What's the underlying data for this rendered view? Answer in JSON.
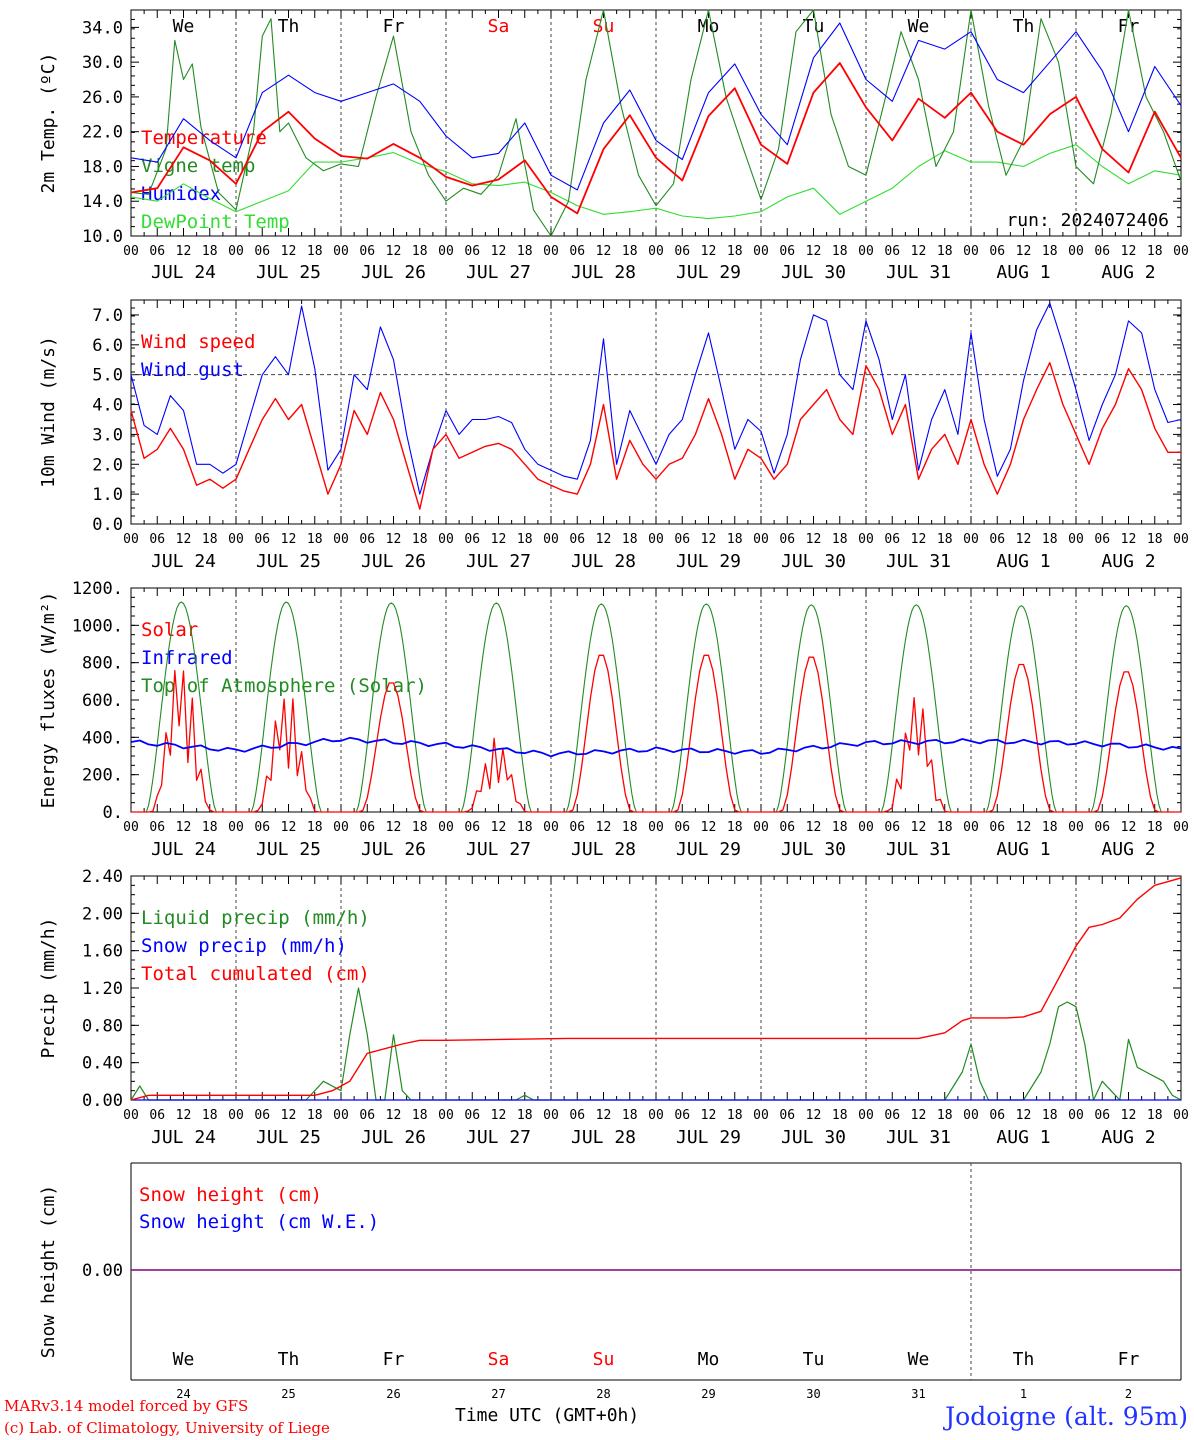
{
  "colors": {
    "red": "#ff0000",
    "green": "#228b22",
    "blue": "#0000ff",
    "lightgreen": "#33dd33",
    "purple": "#800080",
    "grid": "#444444"
  },
  "footer": {
    "model": "MARv3.14 model forced by GFS",
    "lab": "(c) Lab. of Climatology, University of Liege",
    "xaxis": "Time UTC (GMT+0h)",
    "station": "Jodoigne (alt. 95m)"
  },
  "days": {
    "names": [
      "We",
      "Th",
      "Fr",
      "Sa",
      "Su",
      "Mo",
      "Tu",
      "We",
      "Th",
      "Fr"
    ],
    "weekend": [
      false,
      false,
      false,
      true,
      true,
      false,
      false,
      false,
      false,
      false
    ],
    "dates": [
      "JUL 24",
      "JUL 25",
      "JUL 26",
      "JUL 27",
      "JUL 28",
      "JUL 29",
      "JUL 30",
      "JUL 31",
      "AUG  1",
      "AUG  2"
    ],
    "day_numbers": [
      "24",
      "25",
      "26",
      "27",
      "28",
      "29",
      "30",
      "31",
      "1",
      "2"
    ],
    "hour_ticks": [
      "00",
      "06",
      "12",
      "18"
    ],
    "end_tick": "00"
  },
  "chart_data": [
    {
      "type": "line",
      "ylabel": "2m Temp. (ºC)",
      "ylim": [
        10.0,
        36.0
      ],
      "yticks": [
        "10.0",
        "14.0",
        "18.0",
        "22.0",
        "26.0",
        "30.0",
        "34.0"
      ],
      "x_unit": "hours from JUL 24 00 UTC",
      "annotation": "run: 2024072406",
      "series": [
        {
          "name": "Temperature",
          "color": "red",
          "x": [
            0,
            6,
            12,
            18,
            24,
            30,
            36,
            42,
            48,
            54,
            60,
            66,
            72,
            78,
            84,
            90,
            96,
            102,
            108,
            114,
            120,
            126,
            132,
            138,
            144,
            150,
            156,
            162,
            168,
            174,
            180,
            186,
            192,
            198,
            204,
            210,
            216,
            222,
            228,
            234,
            240
          ],
          "values": [
            15.0,
            15.5,
            20.2,
            18.7,
            16.0,
            22.0,
            24.3,
            21.2,
            19.2,
            18.9,
            20.6,
            19.0,
            16.8,
            15.8,
            16.5,
            18.7,
            14.5,
            12.6,
            20.0,
            23.9,
            19.0,
            16.4,
            23.8,
            27.0,
            20.5,
            18.3,
            26.5,
            29.9,
            24.8,
            21.0,
            25.8,
            23.6,
            26.5,
            22.0,
            20.5,
            24.0,
            26.0,
            20.0,
            17.3,
            24.3,
            19.0
          ]
        },
        {
          "name": "Vigne temp",
          "color": "green",
          "x": [
            0,
            4,
            8,
            10,
            12,
            14,
            16,
            20,
            24,
            28,
            30,
            32,
            34,
            36,
            40,
            44,
            48,
            52,
            56,
            60,
            64,
            68,
            72,
            76,
            80,
            84,
            88,
            92,
            96,
            100,
            104,
            108,
            112,
            116,
            120,
            124,
            128,
            132,
            136,
            140,
            144,
            148,
            152,
            156,
            160,
            164,
            168,
            172,
            176,
            180,
            184,
            188,
            192,
            196,
            200,
            204,
            208,
            212,
            216,
            220,
            224,
            228,
            232,
            236,
            240
          ],
          "values": [
            15.0,
            14.8,
            20.0,
            32.5,
            28.0,
            29.8,
            22.5,
            15.0,
            13.0,
            22.0,
            33.0,
            35.0,
            22.0,
            23.0,
            19.0,
            17.5,
            18.3,
            18.0,
            26.0,
            33.0,
            22.0,
            17.0,
            14.0,
            15.5,
            14.8,
            17.0,
            23.5,
            13.0,
            10.0,
            14.0,
            28.0,
            36.0,
            25.0,
            17.0,
            13.5,
            16.0,
            28.0,
            36.0,
            26.0,
            20.0,
            14.2,
            20.0,
            33.5,
            37.0,
            24.0,
            18.0,
            17.0,
            25.0,
            33.5,
            28.0,
            18.0,
            22.0,
            37.0,
            25.0,
            17.0,
            21.0,
            35.0,
            30.0,
            18.0,
            16.0,
            24.0,
            37.0,
            26.0,
            22.0,
            16.3
          ]
        },
        {
          "name": "Humidex",
          "color": "blue",
          "x": [
            0,
            6,
            12,
            18,
            24,
            30,
            36,
            42,
            48,
            54,
            60,
            66,
            72,
            78,
            84,
            90,
            96,
            102,
            108,
            114,
            120,
            126,
            132,
            138,
            144,
            150,
            156,
            162,
            168,
            174,
            180,
            186,
            192,
            198,
            204,
            210,
            216,
            222,
            228,
            234,
            240
          ],
          "values": [
            19.0,
            18.5,
            23.5,
            21.0,
            19.0,
            26.5,
            28.5,
            26.5,
            25.5,
            26.5,
            27.5,
            25.5,
            21.5,
            19.0,
            19.5,
            23.0,
            17.0,
            15.3,
            23.0,
            26.8,
            21.0,
            18.8,
            26.5,
            29.8,
            24.0,
            20.5,
            30.5,
            34.5,
            28.0,
            25.5,
            32.5,
            31.5,
            33.5,
            28.0,
            26.5,
            30.0,
            33.5,
            29.0,
            22.0,
            29.5,
            25.0
          ]
        },
        {
          "name": "DewPoint Temp",
          "color": "lightgreen",
          "x": [
            0,
            6,
            12,
            18,
            24,
            30,
            36,
            42,
            48,
            54,
            60,
            66,
            72,
            78,
            84,
            90,
            96,
            102,
            108,
            114,
            120,
            126,
            132,
            138,
            144,
            150,
            156,
            162,
            168,
            174,
            180,
            186,
            192,
            198,
            204,
            210,
            216,
            222,
            228,
            234,
            240
          ],
          "values": [
            14.5,
            14.0,
            16.0,
            14.3,
            12.8,
            14.0,
            15.2,
            18.5,
            18.5,
            19.0,
            19.6,
            18.3,
            17.4,
            16.0,
            15.8,
            16.2,
            15.0,
            13.5,
            12.5,
            12.8,
            13.2,
            12.3,
            12.0,
            12.3,
            12.8,
            14.5,
            15.5,
            12.5,
            14.0,
            15.5,
            18.0,
            19.8,
            18.5,
            18.5,
            18.0,
            19.5,
            20.5,
            18.0,
            16.0,
            17.5,
            17.0
          ]
        }
      ]
    },
    {
      "type": "line",
      "ylabel": "10m Wind (m/s)",
      "ylim": [
        0.0,
        7.5
      ],
      "yticks": [
        "0.0",
        "1.0",
        "2.0",
        "3.0",
        "4.0",
        "5.0",
        "6.0",
        "7.0"
      ],
      "reference_line": 5.0,
      "series": [
        {
          "name": "Wind speed",
          "color": "red",
          "x": [
            0,
            3,
            6,
            9,
            12,
            15,
            18,
            21,
            24,
            27,
            30,
            33,
            36,
            39,
            42,
            45,
            48,
            51,
            54,
            57,
            60,
            63,
            66,
            69,
            72,
            75,
            78,
            81,
            84,
            87,
            90,
            93,
            96,
            99,
            102,
            105,
            108,
            111,
            114,
            117,
            120,
            123,
            126,
            129,
            132,
            135,
            138,
            141,
            144,
            147,
            150,
            153,
            156,
            159,
            162,
            165,
            168,
            171,
            174,
            177,
            180,
            183,
            186,
            189,
            192,
            195,
            198,
            201,
            204,
            207,
            210,
            213,
            216,
            219,
            222,
            225,
            228,
            231,
            234,
            237,
            240
          ],
          "values": [
            3.8,
            2.2,
            2.5,
            3.2,
            2.5,
            1.3,
            1.5,
            1.2,
            1.5,
            2.5,
            3.5,
            4.2,
            3.5,
            4.0,
            2.5,
            1.0,
            2.0,
            3.8,
            3.0,
            4.4,
            3.5,
            2.0,
            0.5,
            2.5,
            3.0,
            2.2,
            2.4,
            2.6,
            2.7,
            2.5,
            2.0,
            1.5,
            1.3,
            1.1,
            1.0,
            2.0,
            4.0,
            1.5,
            2.8,
            2.0,
            1.5,
            2.0,
            2.2,
            3.0,
            4.2,
            3.0,
            1.5,
            2.5,
            2.2,
            1.5,
            2.0,
            3.5,
            4.0,
            4.5,
            3.5,
            3.0,
            5.3,
            4.5,
            3.0,
            4.0,
            1.5,
            2.5,
            3.0,
            2.0,
            3.5,
            2.0,
            1.0,
            2.0,
            3.5,
            4.5,
            5.4,
            4.0,
            3.0,
            2.0,
            3.2,
            4.0,
            5.2,
            4.5,
            3.2,
            2.4,
            2.4
          ]
        },
        {
          "name": "Wind gust",
          "color": "blue",
          "x": [
            0,
            3,
            6,
            9,
            12,
            15,
            18,
            21,
            24,
            27,
            30,
            33,
            36,
            39,
            42,
            45,
            48,
            51,
            54,
            57,
            60,
            63,
            66,
            69,
            72,
            75,
            78,
            81,
            84,
            87,
            90,
            93,
            96,
            99,
            102,
            105,
            108,
            111,
            114,
            117,
            120,
            123,
            126,
            129,
            132,
            135,
            138,
            141,
            144,
            147,
            150,
            153,
            156,
            159,
            162,
            165,
            168,
            171,
            174,
            177,
            180,
            183,
            186,
            189,
            192,
            195,
            198,
            201,
            204,
            207,
            210,
            213,
            216,
            219,
            222,
            225,
            228,
            231,
            234,
            237,
            240
          ],
          "values": [
            5.0,
            3.3,
            3.0,
            4.3,
            3.8,
            2.0,
            2.0,
            1.7,
            2.0,
            3.5,
            5.0,
            5.6,
            5.0,
            7.3,
            5.2,
            1.8,
            2.5,
            5.0,
            4.5,
            6.6,
            5.5,
            3.0,
            1.0,
            2.5,
            3.8,
            3.0,
            3.5,
            3.5,
            3.6,
            3.4,
            2.5,
            2.0,
            1.8,
            1.6,
            1.5,
            2.8,
            6.2,
            2.0,
            3.8,
            2.9,
            2.0,
            3.0,
            3.5,
            5.0,
            6.4,
            4.5,
            2.5,
            3.5,
            3.1,
            1.7,
            3.0,
            5.5,
            7.0,
            6.8,
            5.0,
            4.5,
            6.8,
            5.5,
            3.5,
            5.0,
            1.8,
            3.5,
            4.5,
            3.0,
            6.4,
            3.5,
            1.6,
            2.5,
            4.8,
            6.5,
            7.4,
            6.0,
            4.5,
            2.8,
            4.0,
            5.0,
            6.8,
            6.4,
            4.5,
            3.4,
            3.5
          ]
        }
      ]
    },
    {
      "type": "line",
      "ylabel": "Energy fluxes (W/m²)",
      "ylim": [
        0,
        1200
      ],
      "yticks": [
        "0.",
        "200.",
        "400.",
        "600.",
        "800.",
        "1000.",
        "1200."
      ],
      "series": [
        {
          "name": "Solar",
          "color": "red",
          "peaks": [
            850,
            680,
            700,
            400,
            850,
            850,
            840,
            620,
            800,
            760
          ]
        },
        {
          "name": "Infrared",
          "color": "blue",
          "x": [
            0,
            24,
            48,
            72,
            96,
            120,
            144,
            168,
            192,
            216,
            240
          ],
          "values": [
            375,
            330,
            390,
            360,
            310,
            335,
            320,
            370,
            380,
            370,
            340
          ]
        },
        {
          "name": "Top of Atmosphere (Solar)",
          "color": "green",
          "peaks": [
            1125,
            1125,
            1120,
            1120,
            1115,
            1115,
            1110,
            1110,
            1105,
            1105
          ]
        }
      ]
    },
    {
      "type": "line",
      "ylabel": "Precip (mm/h)",
      "ylim": [
        0.0,
        2.4
      ],
      "yticks": [
        "0.00",
        "0.40",
        "0.80",
        "1.20",
        "1.60",
        "2.00",
        "2.40"
      ],
      "series": [
        {
          "name": "Liquid precip (mm/h)",
          "color": "green",
          "x": [
            0,
            2,
            4,
            6,
            30,
            40,
            44,
            48,
            50,
            52,
            54,
            56,
            58,
            60,
            62,
            64,
            66,
            88,
            90,
            92,
            186,
            190,
            192,
            194,
            196,
            198,
            204,
            208,
            210,
            212,
            214,
            216,
            218,
            220,
            222,
            224,
            226,
            228,
            230,
            232,
            234,
            236,
            238,
            240
          ],
          "values": [
            0.0,
            0.15,
            0.0,
            0.0,
            0.0,
            0.0,
            0.2,
            0.1,
            0.7,
            1.2,
            0.7,
            0.0,
            0.0,
            0.7,
            0.1,
            0.0,
            0.0,
            0.0,
            0.05,
            0.0,
            0.0,
            0.3,
            0.6,
            0.2,
            0.0,
            0.0,
            0.0,
            0.3,
            0.6,
            1.0,
            1.05,
            1.0,
            0.6,
            0.0,
            0.2,
            0.1,
            0.0,
            0.65,
            0.35,
            0.3,
            0.25,
            0.2,
            0.05,
            0.0
          ]
        },
        {
          "name": "Snow precip (mm/h)",
          "color": "blue",
          "x": [
            0,
            240
          ],
          "values": [
            0.0,
            0.0
          ]
        },
        {
          "name": "Total cumulated (cm)",
          "color": "red",
          "x": [
            0,
            4,
            42,
            46,
            50,
            54,
            58,
            62,
            66,
            72,
            100,
            180,
            186,
            190,
            192,
            196,
            200,
            204,
            208,
            212,
            216,
            219,
            222,
            226,
            230,
            234,
            240
          ],
          "values": [
            0.0,
            0.05,
            0.05,
            0.1,
            0.2,
            0.5,
            0.55,
            0.6,
            0.64,
            0.64,
            0.66,
            0.66,
            0.72,
            0.85,
            0.88,
            0.88,
            0.88,
            0.89,
            0.95,
            1.3,
            1.65,
            1.85,
            1.88,
            1.95,
            2.15,
            2.3,
            2.38
          ]
        }
      ]
    },
    {
      "type": "line",
      "ylabel": "Snow height (cm)",
      "yticks": [
        "0.00"
      ],
      "series": [
        {
          "name": "Snow height (cm)",
          "color": "red",
          "x": [
            0,
            240
          ],
          "values": [
            0.0,
            0.0
          ]
        },
        {
          "name": "Snow height (cm W.E.)",
          "color": "blue",
          "x": [
            0,
            240
          ],
          "values": [
            0.0,
            0.0
          ]
        }
      ]
    }
  ]
}
